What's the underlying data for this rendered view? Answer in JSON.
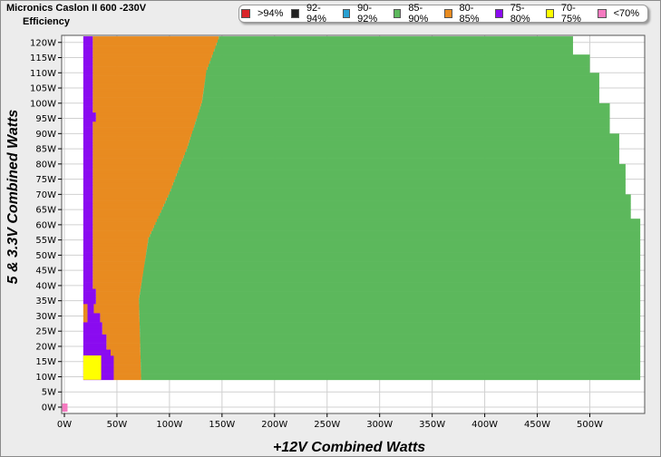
{
  "header": {
    "title": "Micronics Caslon II 600 -230V",
    "subtitle": "Efficiency"
  },
  "legend": [
    {
      "label": ">94%",
      "color": "#d9262b"
    },
    {
      "label": "92-94%",
      "color": "#222222"
    },
    {
      "label": "90-92%",
      "color": "#28a0d2"
    },
    {
      "label": "85-90%",
      "color": "#5cb85c"
    },
    {
      "label": "80-85%",
      "color": "#e88b20"
    },
    {
      "label": "75-80%",
      "color": "#8a0bf0"
    },
    {
      "label": "70-75%",
      "color": "#ffff00"
    },
    {
      "label": "<70%",
      "color": "#f57ac0"
    }
  ],
  "chart_data": {
    "type": "heatmap",
    "xlabel": "+12V Combined Watts",
    "ylabel": "5 & 3.3V Combined Watts",
    "xlim": [
      0,
      550
    ],
    "ylim": [
      0,
      120
    ],
    "x_ticks": [
      "0W",
      "50W",
      "100W",
      "150W",
      "200W",
      "250W",
      "300W",
      "350W",
      "400W",
      "450W",
      "500W"
    ],
    "y_ticks": [
      "0W",
      "5W",
      "10W",
      "15W",
      "20W",
      "25W",
      "30W",
      "35W",
      "40W",
      "45W",
      "50W",
      "55W",
      "60W",
      "65W",
      "70W",
      "75W",
      "80W",
      "85W",
      "90W",
      "95W",
      "100W",
      "105W",
      "110W",
      "115W",
      "120W"
    ],
    "grid": true,
    "regions_note": "efficiency bands by load combination",
    "regions": [
      {
        "band": "85-90%",
        "color": "#5cb85c",
        "y_from": 9,
        "y_to": 122,
        "x_from_at_y": [
          [
            9,
            73
          ],
          [
            35,
            71
          ],
          [
            55,
            80
          ],
          [
            70,
            100
          ],
          [
            85,
            117
          ],
          [
            100,
            131
          ],
          [
            110,
            135
          ],
          [
            122,
            148
          ]
        ],
        "x_to_at_y": [
          [
            9,
            548
          ],
          [
            62,
            548
          ],
          [
            62,
            539
          ],
          [
            70,
            534
          ],
          [
            80,
            528
          ],
          [
            90,
            519
          ],
          [
            100,
            509
          ],
          [
            110,
            500
          ],
          [
            122,
            484
          ]
        ]
      },
      {
        "band": "80-85%",
        "color": "#e88b20",
        "y_from": 9,
        "y_to": 122
      },
      {
        "band": "75-80%",
        "color": "#8a0bf0",
        "y_from": 9,
        "y_to": 122
      },
      {
        "band": "70-75%",
        "color": "#ffff00",
        "points": [
          [
            17,
            9
          ],
          [
            35,
            17
          ]
        ]
      },
      {
        "band": "<70%",
        "color": "#f57ac0",
        "points": [
          [
            -2,
            -1
          ],
          [
            3,
            1
          ]
        ]
      }
    ]
  }
}
